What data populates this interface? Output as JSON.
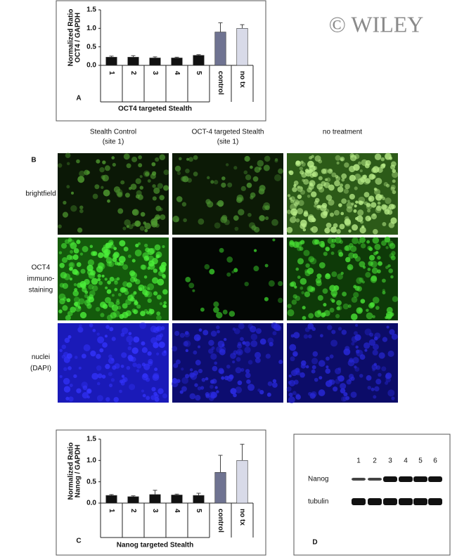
{
  "chart_data": [
    {
      "type": "bar",
      "label": "A",
      "ylabel": [
        "Normalized Ratio",
        "OCT4 / GAPDH"
      ],
      "categories": [
        "1",
        "2",
        "3",
        "4",
        "5",
        "control",
        "no tx"
      ],
      "values": [
        0.22,
        0.22,
        0.2,
        0.2,
        0.27,
        0.9,
        1.0
      ],
      "errors": [
        0.03,
        0.04,
        0.03,
        0.02,
        0.02,
        0.25,
        0.1
      ],
      "colors": [
        "#111111",
        "#111111",
        "#111111",
        "#111111",
        "#111111",
        "#6f7391",
        "#d8dae8"
      ],
      "group_label": "OCT4 targeted Stealth",
      "ylim": [
        0,
        1.5
      ],
      "yticks": [
        {
          "value": 0,
          "label": "0.0"
        },
        0.5,
        {
          "value": 1,
          "label": "1.0"
        },
        1.5
      ]
    },
    {
      "type": "bar",
      "label": "C",
      "ylabel": [
        "Normalized Ratio",
        "Nanog / GAPDH"
      ],
      "categories": [
        "1",
        "2",
        "3",
        "4",
        "5",
        "control",
        "no tx"
      ],
      "values": [
        0.18,
        0.15,
        0.2,
        0.19,
        0.18,
        0.72,
        1.0
      ],
      "errors": [
        0.02,
        0.02,
        0.1,
        0.02,
        0.05,
        0.4,
        0.38
      ],
      "colors": [
        "#111111",
        "#111111",
        "#111111",
        "#111111",
        "#111111",
        "#6f7391",
        "#d8dae8"
      ],
      "group_label": "Nanog targeted Stealth",
      "ylim": [
        0,
        1.5
      ],
      "yticks": [
        {
          "value": 0,
          "label": "0.0"
        },
        0.5,
        {
          "value": 1,
          "label": "1.0"
        },
        1.5
      ]
    }
  ],
  "watermark": "© WILEY",
  "panel_b": {
    "label": "B",
    "columns": [
      [
        "Stealth Control",
        "(site 1)"
      ],
      [
        "OCT-4 targeted Stealth",
        "(site 1)"
      ],
      [
        "no treatment"
      ]
    ],
    "rows": [
      [
        "brightfield"
      ],
      [
        "OCT4",
        "immuno-",
        "staining"
      ],
      [
        "nuclei",
        "(DAPI)"
      ]
    ]
  },
  "panel_d": {
    "label": "D",
    "lanes": [
      "1",
      "2",
      "3",
      "4",
      "5",
      "6"
    ],
    "bands": [
      "Nanog",
      "tubulin"
    ]
  }
}
